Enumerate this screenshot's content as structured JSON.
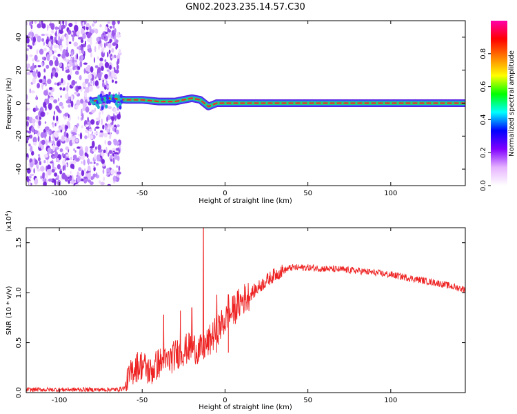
{
  "title": "GN02.2023.235.14.57.C30",
  "chart_data": [
    {
      "type": "heatmap",
      "xlabel": "Height of straight line (km)",
      "ylabel": "Frequency (Hz)",
      "xlim": [
        -120,
        145
      ],
      "ylim": [
        -50,
        50
      ],
      "xticks": [
        -100,
        -50,
        0,
        50,
        100
      ],
      "yticks": [
        -40,
        -20,
        0,
        20,
        40
      ],
      "grid": false,
      "colorbar": {
        "label": "Normalized spectral amplitude",
        "range": [
          0,
          1
        ],
        "ticks": [
          "0.0",
          "0.2",
          "0.4",
          "0.6",
          "0.8"
        ],
        "colormap": [
          "#ffffff",
          "#e6b3ff",
          "#8000ff",
          "#0000ff",
          "#00ffff",
          "#00ff00",
          "#ffff00",
          "#ff8000",
          "#ff0000",
          "#ff00aa"
        ]
      },
      "noise_region_x": [
        -120,
        -65
      ],
      "ridge": [
        {
          "x": -80,
          "y": 1
        },
        {
          "x": -70,
          "y": 3
        },
        {
          "x": -60,
          "y": 2
        },
        {
          "x": -50,
          "y": 2
        },
        {
          "x": -40,
          "y": 1
        },
        {
          "x": -30,
          "y": 1
        },
        {
          "x": -20,
          "y": 3
        },
        {
          "x": -15,
          "y": 2
        },
        {
          "x": -10,
          "y": -2
        },
        {
          "x": -5,
          "y": 0
        },
        {
          "x": 0,
          "y": 0
        },
        {
          "x": 50,
          "y": 0
        },
        {
          "x": 100,
          "y": 0
        },
        {
          "x": 145,
          "y": 0
        }
      ]
    },
    {
      "type": "line",
      "xlabel": "Height of straight line (km)",
      "ylabel": "SNR (10 * v/v)",
      "y_multiplier": "(x10",
      "y_multiplier_exp": "4",
      "y_multiplier_close": ")",
      "xlim": [
        -120,
        145
      ],
      "ylim": [
        0,
        1.65
      ],
      "xticks": [
        -100,
        -50,
        0,
        50,
        100
      ],
      "yticks": [
        "0.0",
        "0.5",
        "1.0",
        "1.5"
      ],
      "grid": false,
      "series_color": "#ee2222",
      "points": [
        {
          "x": -120,
          "y": 0.03
        },
        {
          "x": -90,
          "y": 0.03
        },
        {
          "x": -65,
          "y": 0.03
        },
        {
          "x": -60,
          "y": 0.05
        },
        {
          "x": -55,
          "y": 0.25
        },
        {
          "x": -50,
          "y": 0.28
        },
        {
          "x": -45,
          "y": 0.2
        },
        {
          "x": -40,
          "y": 0.3
        },
        {
          "x": -35,
          "y": 0.3
        },
        {
          "x": -30,
          "y": 0.38
        },
        {
          "x": -25,
          "y": 0.42
        },
        {
          "x": -20,
          "y": 0.46
        },
        {
          "x": -15,
          "y": 0.42
        },
        {
          "x": -10,
          "y": 0.5
        },
        {
          "x": -5,
          "y": 0.62
        },
        {
          "x": 0,
          "y": 0.72
        },
        {
          "x": 5,
          "y": 0.82
        },
        {
          "x": 10,
          "y": 0.92
        },
        {
          "x": 15,
          "y": 0.98
        },
        {
          "x": 20,
          "y": 1.05
        },
        {
          "x": 25,
          "y": 1.12
        },
        {
          "x": 30,
          "y": 1.18
        },
        {
          "x": 35,
          "y": 1.22
        },
        {
          "x": 40,
          "y": 1.25
        },
        {
          "x": 50,
          "y": 1.25
        },
        {
          "x": 60,
          "y": 1.24
        },
        {
          "x": 70,
          "y": 1.23
        },
        {
          "x": 80,
          "y": 1.22
        },
        {
          "x": 90,
          "y": 1.2
        },
        {
          "x": 100,
          "y": 1.18
        },
        {
          "x": 110,
          "y": 1.15
        },
        {
          "x": 120,
          "y": 1.12
        },
        {
          "x": 130,
          "y": 1.09
        },
        {
          "x": 145,
          "y": 1.03
        }
      ],
      "spikes": [
        {
          "x": -37,
          "y": 0.78
        },
        {
          "x": -27,
          "y": 0.82
        },
        {
          "x": -20,
          "y": 0.85
        },
        {
          "x": -13,
          "y": 1.66
        },
        {
          "x": -5,
          "y": 0.98
        },
        {
          "x": 2,
          "y": 0.98
        }
      ]
    }
  ]
}
